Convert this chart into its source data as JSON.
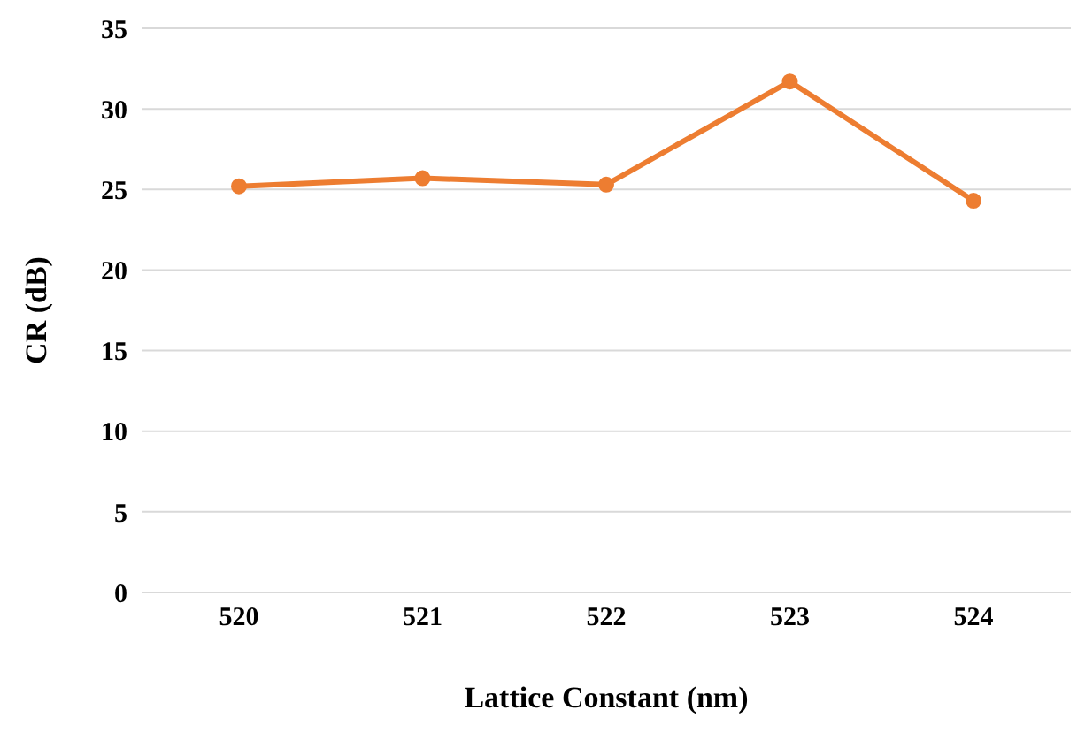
{
  "chart_data": {
    "type": "line",
    "xlabel": "Lattice Constant (nm)",
    "ylabel": "CR (dB)",
    "categories": [
      "520",
      "521",
      "522",
      "523",
      "524"
    ],
    "series": [
      {
        "color": "#ed7d31",
        "values": [
          25.2,
          25.7,
          25.3,
          31.7,
          24.3
        ]
      }
    ],
    "ylim": [
      0,
      35
    ],
    "yticks": [
      0,
      5,
      10,
      15,
      20,
      25,
      30,
      35
    ],
    "grid": "y",
    "marker": "circle",
    "line_style": "solid"
  }
}
